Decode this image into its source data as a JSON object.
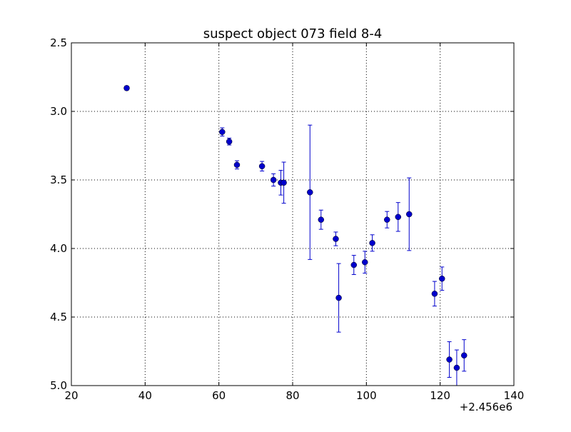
{
  "chart_data": {
    "type": "scatter",
    "title": "suspect object 073 field 8-4",
    "xlabel": "",
    "ylabel": "",
    "x_offset_label": "+2.456e6",
    "xlim": [
      20,
      140
    ],
    "ylim": [
      5.0,
      2.5
    ],
    "y_inverted": true,
    "x_ticks": [
      "20",
      "40",
      "60",
      "80",
      "100",
      "120",
      "140"
    ],
    "y_ticks": [
      "2.5",
      "3.0",
      "3.5",
      "4.0",
      "4.5",
      "5.0"
    ],
    "grid": true,
    "marker_color": "#0000cc",
    "series": [
      {
        "points": [
          {
            "x": 35.0,
            "y": 2.83,
            "err": 0.015
          },
          {
            "x": 60.9,
            "y": 3.15,
            "err": 0.03
          },
          {
            "x": 62.8,
            "y": 3.22,
            "err": 0.025
          },
          {
            "x": 64.9,
            "y": 3.39,
            "err": 0.03
          },
          {
            "x": 71.7,
            "y": 3.4,
            "err": 0.035
          },
          {
            "x": 74.8,
            "y": 3.5,
            "err": 0.045
          },
          {
            "x": 76.8,
            "y": 3.52,
            "err": 0.09
          },
          {
            "x": 77.6,
            "y": 3.52,
            "err": 0.15
          },
          {
            "x": 84.7,
            "y": 3.59,
            "err": 0.49
          },
          {
            "x": 87.7,
            "y": 3.79,
            "err": 0.07
          },
          {
            "x": 91.7,
            "y": 3.93,
            "err": 0.05
          },
          {
            "x": 92.5,
            "y": 4.36,
            "err": 0.25
          },
          {
            "x": 96.6,
            "y": 4.12,
            "err": 0.07
          },
          {
            "x": 99.6,
            "y": 4.1,
            "err": 0.08
          },
          {
            "x": 101.6,
            "y": 3.96,
            "err": 0.06
          },
          {
            "x": 105.6,
            "y": 3.79,
            "err": 0.06
          },
          {
            "x": 108.6,
            "y": 3.77,
            "err": 0.105
          },
          {
            "x": 111.6,
            "y": 3.75,
            "err": 0.265
          },
          {
            "x": 118.5,
            "y": 4.33,
            "err": 0.09
          },
          {
            "x": 120.5,
            "y": 4.22,
            "err": 0.085
          },
          {
            "x": 122.5,
            "y": 4.81,
            "err": 0.13
          },
          {
            "x": 124.5,
            "y": 4.87,
            "err": 0.13
          },
          {
            "x": 126.5,
            "y": 4.78,
            "err": 0.115
          }
        ]
      }
    ]
  }
}
